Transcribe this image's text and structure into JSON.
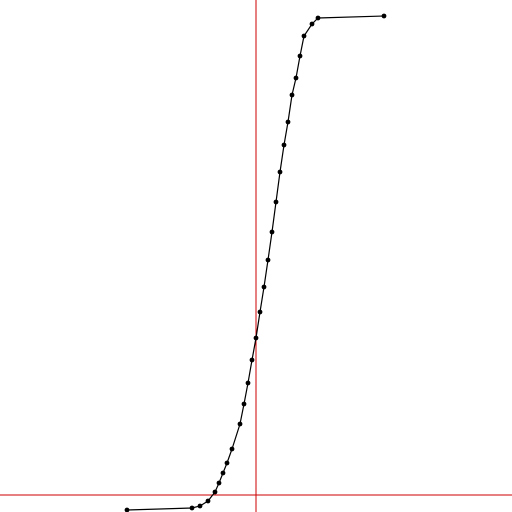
{
  "chart_data": {
    "type": "line",
    "xlim": [
      -256,
      256
    ],
    "ylim": [
      -17,
      495
    ],
    "grid": false,
    "axes": {
      "x_at": 0,
      "y_at": 0
    },
    "colors": {
      "axis": "#cc0000",
      "line": "#000000",
      "marker": "#000000",
      "background": "#ffffff"
    },
    "series": [
      {
        "marker": "circle",
        "x": [
          -129,
          -64,
          -56,
          -48,
          -41,
          -37,
          -33,
          -29,
          -24,
          -16,
          -12,
          -8,
          -4,
          0,
          4,
          8,
          12,
          16,
          20,
          24,
          28,
          32,
          36,
          40,
          44,
          48,
          56,
          62,
          128
        ],
        "y": [
          -15,
          -13,
          -11,
          -6,
          3,
          12,
          22,
          32,
          46,
          71,
          91,
          112,
          135,
          157,
          183,
          208,
          235,
          263,
          293,
          323,
          350,
          373,
          400,
          417,
          439,
          459,
          471,
          477,
          479
        ]
      }
    ]
  }
}
